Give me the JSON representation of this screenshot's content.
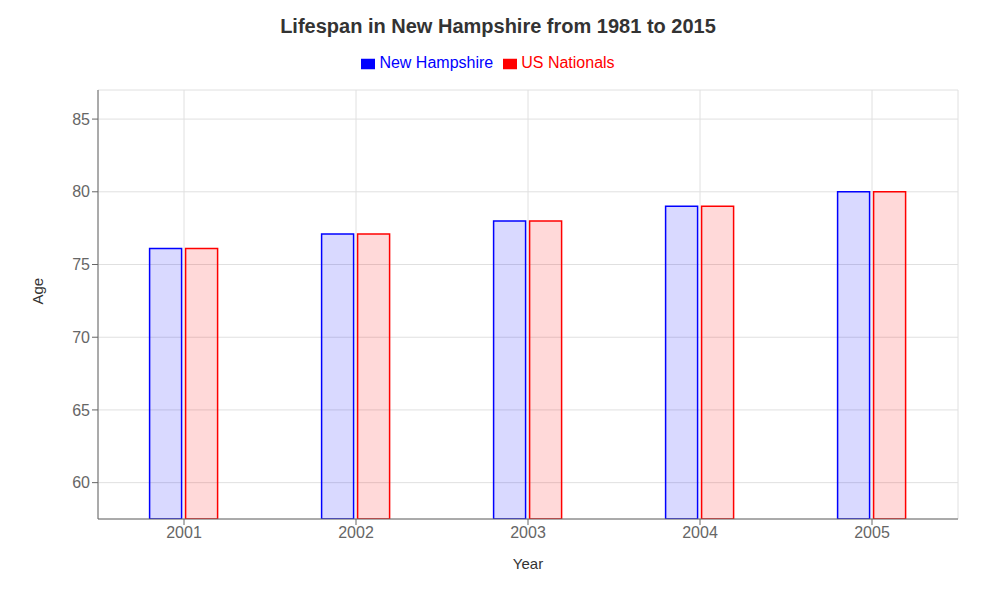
{
  "chart_data": {
    "type": "bar",
    "title": "Lifespan in New Hampshire from 1981 to 2015",
    "xlabel": "Year",
    "ylabel": "Age",
    "categories": [
      "2001",
      "2002",
      "2003",
      "2004",
      "2005"
    ],
    "series": [
      {
        "name": "New Hampshire",
        "color": "#0000ff",
        "values": [
          76.1,
          77.1,
          78.0,
          79.0,
          80.0
        ]
      },
      {
        "name": "US Nationals",
        "color": "#ff0000",
        "values": [
          76.1,
          77.1,
          78.0,
          79.0,
          80.0
        ]
      }
    ],
    "ylim": [
      57.5,
      87
    ],
    "yticks": [
      60,
      65,
      70,
      75,
      80,
      85
    ],
    "grid": true,
    "legend": "top"
  }
}
